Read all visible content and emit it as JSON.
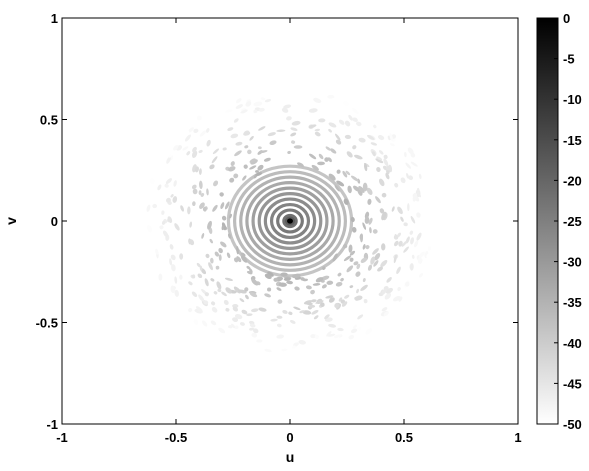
{
  "chart_data": {
    "type": "heatmap",
    "title": "",
    "xlabel": "u",
    "ylabel": "v",
    "xlim": [
      -1,
      1
    ],
    "ylim": [
      -1,
      1
    ],
    "xticks": [
      "-1",
      "-0.5",
      "0",
      "0.5",
      "1"
    ],
    "yticks": [
      "1",
      "0.5",
      "0",
      "-0.5",
      "-1"
    ],
    "colorbar": {
      "range": [
        -50,
        0
      ],
      "ticks": [
        "0",
        "-5",
        "-10",
        "-15",
        "-20",
        "-25",
        "-30",
        "-35",
        "-40",
        "-45",
        "-50"
      ],
      "colormap": "gray (0 = black, -50 = white)"
    },
    "grid": false,
    "pattern": {
      "peak_value": 0,
      "peak_location": [
        0,
        0
      ],
      "ring_spacing": 0.027,
      "main_lobe_radius": 0.26,
      "sidelobe_extent_radius": 0.65,
      "background_level": -50
    }
  }
}
